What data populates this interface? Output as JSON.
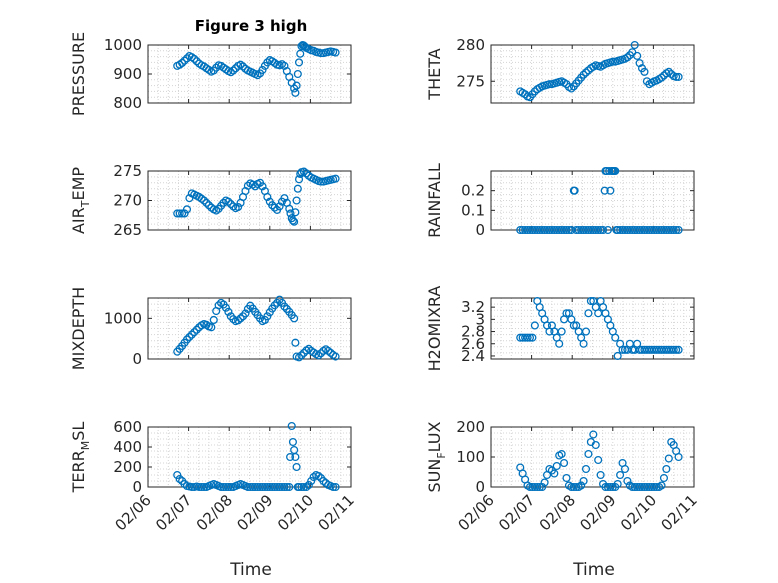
{
  "figure": {
    "title": "Figure 3 high"
  },
  "axes_labels": {
    "xlabel": "Time"
  },
  "colors": {
    "series": "#0072bd",
    "axes": "#262626",
    "grid": "#d4d4d4"
  },
  "chart_data": [
    {
      "type": "scatter",
      "ylabel": "PRESSURE",
      "title": "Figure 3 high",
      "xlim": [
        "02/06",
        "02/11"
      ],
      "ylim": [
        800,
        1000
      ],
      "yticks": [
        800,
        900,
        1000
      ],
      "ytick_labels": [
        "800",
        "900",
        "1000"
      ],
      "xticks": [
        "02/06",
        "02/07",
        "02/08",
        "02/09",
        "02/10",
        "02/11"
      ],
      "show_xticklabels": false,
      "grid": true,
      "x": [
        0.72,
        0.78,
        0.84,
        0.9,
        0.96,
        1.02,
        1.08,
        1.14,
        1.2,
        1.26,
        1.32,
        1.38,
        1.44,
        1.5,
        1.56,
        1.62,
        1.68,
        1.74,
        1.8,
        1.86,
        1.92,
        1.98,
        2.04,
        2.1,
        2.16,
        2.22,
        2.28,
        2.34,
        2.4,
        2.46,
        2.52,
        2.58,
        2.64,
        2.7,
        2.76,
        2.82,
        2.88,
        2.94,
        3.0,
        3.06,
        3.12,
        3.18,
        3.24,
        3.3,
        3.36,
        3.42,
        3.48,
        3.54,
        3.6,
        3.63,
        3.66,
        3.69,
        3.72,
        3.75,
        3.78,
        3.81,
        3.84,
        3.87,
        3.9,
        3.96,
        4.02,
        4.08,
        4.14,
        4.2,
        4.26,
        4.32,
        4.38,
        4.44,
        4.5,
        4.56,
        4.62
      ],
      "y": [
        928,
        932,
        938,
        946,
        954,
        962,
        958,
        952,
        944,
        936,
        930,
        926,
        920,
        914,
        908,
        912,
        922,
        930,
        928,
        922,
        916,
        910,
        906,
        912,
        920,
        928,
        932,
        926,
        918,
        912,
        908,
        904,
        900,
        896,
        902,
        914,
        928,
        940,
        948,
        944,
        938,
        932,
        930,
        934,
        928,
        910,
        890,
        870,
        850,
        835,
        860,
        900,
        940,
        970,
        996,
        1000,
        998,
        994,
        990,
        986,
        982,
        980,
        976,
        974,
        972,
        972,
        974,
        976,
        978,
        976,
        974
      ]
    },
    {
      "type": "scatter",
      "ylabel": "THETA",
      "xlim": [
        "02/06",
        "02/11"
      ],
      "ylim": [
        272,
        280
      ],
      "yticks": [
        275,
        280
      ],
      "ytick_labels": [
        "275",
        "280"
      ],
      "xticks": [
        "02/06",
        "02/07",
        "02/08",
        "02/09",
        "02/10",
        "02/11"
      ],
      "show_xticklabels": false,
      "grid": true,
      "x": [
        0.72,
        0.78,
        0.84,
        0.9,
        0.96,
        1.02,
        1.08,
        1.14,
        1.2,
        1.26,
        1.32,
        1.38,
        1.44,
        1.5,
        1.56,
        1.62,
        1.68,
        1.74,
        1.8,
        1.86,
        1.92,
        1.98,
        2.04,
        2.1,
        2.16,
        2.22,
        2.28,
        2.34,
        2.4,
        2.46,
        2.52,
        2.58,
        2.64,
        2.7,
        2.76,
        2.82,
        2.88,
        2.94,
        3.0,
        3.06,
        3.12,
        3.18,
        3.24,
        3.3,
        3.36,
        3.42,
        3.48,
        3.54,
        3.6,
        3.66,
        3.72,
        3.78,
        3.84,
        3.9,
        3.96,
        4.02,
        4.08,
        4.14,
        4.2,
        4.26,
        4.32,
        4.38,
        4.44,
        4.5,
        4.56,
        4.62
      ],
      "y": [
        273.6,
        273.4,
        273.2,
        272.9,
        272.8,
        273.2,
        273.6,
        273.9,
        274.1,
        274.3,
        274.4,
        274.5,
        274.6,
        274.6,
        274.7,
        274.8,
        274.9,
        275.0,
        274.8,
        274.6,
        274.2,
        274.0,
        274.3,
        274.7,
        275.1,
        275.5,
        275.9,
        276.2,
        276.5,
        276.8,
        277.0,
        277.2,
        277.1,
        277.0,
        277.2,
        277.4,
        277.5,
        277.6,
        277.7,
        277.7,
        277.8,
        277.9,
        278.0,
        278.1,
        278.3,
        278.6,
        279.0,
        280.0,
        278.5,
        277.5,
        276.8,
        276.3,
        275.0,
        274.6,
        274.8,
        275.0,
        275.1,
        275.3,
        275.5,
        275.8,
        276.1,
        276.3,
        276.0,
        275.7,
        275.6,
        275.6
      ]
    },
    {
      "type": "scatter",
      "ylabel": "AIR_TEMP",
      "xlim": [
        "02/06",
        "02/11"
      ],
      "ylim": [
        265,
        275
      ],
      "yticks": [
        265,
        270,
        275
      ],
      "ytick_labels": [
        "265",
        "270",
        "275"
      ],
      "xticks": [
        "02/06",
        "02/07",
        "02/08",
        "02/09",
        "02/10",
        "02/11"
      ],
      "show_xticklabels": false,
      "grid": true,
      "x": [
        0.72,
        0.78,
        0.84,
        0.9,
        0.96,
        1.02,
        1.08,
        1.14,
        1.2,
        1.26,
        1.32,
        1.38,
        1.44,
        1.5,
        1.56,
        1.62,
        1.68,
        1.74,
        1.8,
        1.86,
        1.92,
        1.98,
        2.04,
        2.1,
        2.16,
        2.22,
        2.28,
        2.34,
        2.4,
        2.46,
        2.52,
        2.58,
        2.64,
        2.7,
        2.76,
        2.82,
        2.88,
        2.94,
        3.0,
        3.06,
        3.12,
        3.18,
        3.24,
        3.3,
        3.36,
        3.42,
        3.48,
        3.51,
        3.54,
        3.57,
        3.6,
        3.63,
        3.66,
        3.69,
        3.72,
        3.75,
        3.78,
        3.84,
        3.9,
        3.96,
        4.02,
        4.08,
        4.14,
        4.2,
        4.26,
        4.32,
        4.38,
        4.44,
        4.5,
        4.56,
        4.62
      ],
      "y": [
        267.8,
        267.8,
        267.8,
        267.8,
        268.5,
        270.4,
        271.2,
        271.0,
        270.8,
        270.6,
        270.3,
        270.0,
        269.6,
        269.2,
        268.8,
        268.5,
        268.3,
        268.6,
        269.1,
        269.6,
        270.0,
        269.8,
        269.4,
        269.0,
        268.7,
        268.9,
        269.6,
        270.6,
        271.6,
        272.5,
        272.9,
        272.7,
        272.4,
        272.8,
        273.0,
        272.4,
        271.6,
        270.6,
        269.8,
        269.2,
        268.8,
        268.4,
        269.0,
        269.8,
        270.4,
        269.6,
        268.6,
        267.8,
        267.0,
        266.6,
        266.4,
        268.0,
        270.0,
        272.0,
        273.6,
        274.5,
        274.8,
        274.9,
        274.6,
        274.2,
        273.9,
        273.7,
        273.5,
        273.3,
        273.2,
        273.2,
        273.3,
        273.4,
        273.5,
        273.6,
        273.7
      ]
    },
    {
      "type": "scatter",
      "ylabel": "RAINFALL",
      "xlim": [
        "02/06",
        "02/11"
      ],
      "ylim": [
        0,
        0.3
      ],
      "yticks": [
        0,
        0.1,
        0.2
      ],
      "ytick_labels": [
        "0",
        "0.1",
        "0.2"
      ],
      "xticks": [
        "02/06",
        "02/07",
        "02/08",
        "02/09",
        "02/10",
        "02/11"
      ],
      "show_xticklabels": false,
      "grid": true,
      "x": [
        0.72,
        0.78,
        0.84,
        0.9,
        0.96,
        1.02,
        1.08,
        1.14,
        1.2,
        1.26,
        1.32,
        1.38,
        1.44,
        1.5,
        1.56,
        1.62,
        1.68,
        1.74,
        1.8,
        1.86,
        1.92,
        1.98,
        2.04,
        2.06,
        2.1,
        2.16,
        2.22,
        2.28,
        2.34,
        2.4,
        2.46,
        2.52,
        2.58,
        2.64,
        2.7,
        2.76,
        2.8,
        2.82,
        2.85,
        2.88,
        2.91,
        2.94,
        2.97,
        3.0,
        3.03,
        3.06,
        3.09,
        3.12,
        3.18,
        3.24,
        3.3,
        3.36,
        3.42,
        3.48,
        3.54,
        3.6,
        3.66,
        3.72,
        3.78,
        3.84,
        3.9,
        3.96,
        4.02,
        4.08,
        4.14,
        4.2,
        4.26,
        4.32,
        4.38,
        4.44,
        4.5,
        4.56,
        4.62
      ],
      "y": [
        0,
        0,
        0,
        0,
        0,
        0,
        0,
        0,
        0,
        0,
        0,
        0,
        0,
        0,
        0,
        0,
        0,
        0,
        0,
        0,
        0,
        0,
        0.2,
        0.2,
        0,
        0,
        0,
        0,
        0,
        0,
        0,
        0,
        0,
        0,
        0,
        0,
        0.2,
        0.3,
        0.3,
        0,
        0.3,
        0.2,
        0.3,
        0.3,
        0.3,
        0.3,
        0,
        0,
        0,
        0,
        0,
        0,
        0,
        0,
        0,
        0,
        0,
        0,
        0,
        0,
        0,
        0,
        0,
        0,
        0,
        0,
        0,
        0,
        0,
        0,
        0,
        0,
        0
      ]
    },
    {
      "type": "scatter",
      "ylabel": "MIXDEPTH",
      "xlim": [
        "02/06",
        "02/11"
      ],
      "ylim": [
        0,
        1500
      ],
      "yticks": [
        0,
        1000
      ],
      "ytick_labels": [
        "0",
        "1000"
      ],
      "xticks": [
        "02/06",
        "02/07",
        "02/08",
        "02/09",
        "02/10",
        "02/11"
      ],
      "show_xticklabels": false,
      "grid": true,
      "x": [
        0.72,
        0.78,
        0.84,
        0.9,
        0.96,
        1.02,
        1.08,
        1.14,
        1.2,
        1.26,
        1.32,
        1.38,
        1.44,
        1.5,
        1.56,
        1.62,
        1.68,
        1.74,
        1.8,
        1.86,
        1.92,
        1.98,
        2.04,
        2.1,
        2.16,
        2.22,
        2.28,
        2.34,
        2.4,
        2.46,
        2.52,
        2.58,
        2.64,
        2.7,
        2.76,
        2.82,
        2.88,
        2.94,
        3.0,
        3.06,
        3.12,
        3.18,
        3.24,
        3.3,
        3.36,
        3.42,
        3.48,
        3.54,
        3.6,
        3.63,
        3.66,
        3.72,
        3.78,
        3.84,
        3.9,
        3.96,
        4.02,
        4.08,
        4.14,
        4.2,
        4.26,
        4.32,
        4.38,
        4.44,
        4.5,
        4.56,
        4.62
      ],
      "y": [
        180,
        250,
        320,
        400,
        480,
        540,
        600,
        660,
        720,
        780,
        830,
        860,
        840,
        800,
        780,
        960,
        1180,
        1320,
        1380,
        1340,
        1260,
        1160,
        1050,
        980,
        930,
        950,
        1000,
        1050,
        1120,
        1230,
        1310,
        1240,
        1160,
        1080,
        1000,
        930,
        960,
        1050,
        1150,
        1240,
        1320,
        1380,
        1460,
        1380,
        1290,
        1230,
        1160,
        1080,
        1000,
        400,
        60,
        40,
        90,
        150,
        210,
        250,
        200,
        160,
        120,
        90,
        140,
        200,
        240,
        200,
        150,
        100,
        60
      ]
    },
    {
      "type": "scatter",
      "ylabel": "H2OMIXRA",
      "xlim": [
        "02/06",
        "02/11"
      ],
      "ylim": [
        2.35,
        3.35
      ],
      "yticks": [
        2.4,
        2.6,
        2.8,
        3.0,
        3.2
      ],
      "ytick_labels": [
        "2.4",
        "2.6",
        "2.8",
        "3",
        "3.2"
      ],
      "xticks": [
        "02/06",
        "02/07",
        "02/08",
        "02/09",
        "02/10",
        "02/11"
      ],
      "show_xticklabels": false,
      "grid": true,
      "x": [
        0.72,
        0.78,
        0.84,
        0.9,
        0.96,
        1.02,
        1.08,
        1.14,
        1.2,
        1.26,
        1.32,
        1.38,
        1.44,
        1.5,
        1.56,
        1.62,
        1.68,
        1.74,
        1.8,
        1.86,
        1.92,
        1.98,
        2.04,
        2.1,
        2.16,
        2.22,
        2.28,
        2.34,
        2.4,
        2.46,
        2.52,
        2.58,
        2.64,
        2.7,
        2.76,
        2.82,
        2.88,
        2.94,
        3.0,
        3.06,
        3.12,
        3.18,
        3.24,
        3.3,
        3.36,
        3.42,
        3.48,
        3.54,
        3.6,
        3.66,
        3.72,
        3.78,
        3.84,
        3.9,
        3.96,
        4.02,
        4.08,
        4.14,
        4.2,
        4.26,
        4.32,
        4.38,
        4.44,
        4.5,
        4.56,
        4.62
      ],
      "y": [
        2.7,
        2.7,
        2.7,
        2.7,
        2.7,
        2.7,
        2.9,
        3.3,
        3.2,
        3.1,
        3.0,
        2.9,
        2.8,
        2.9,
        2.8,
        2.7,
        2.6,
        2.8,
        3.0,
        3.1,
        3.1,
        3.0,
        2.9,
        2.9,
        2.8,
        2.7,
        2.6,
        2.8,
        3.1,
        3.3,
        3.3,
        3.2,
        3.1,
        3.3,
        3.2,
        3.1,
        3.0,
        2.9,
        2.8,
        2.7,
        2.4,
        2.6,
        2.5,
        2.5,
        2.5,
        2.6,
        2.5,
        2.5,
        2.6,
        2.5,
        2.5,
        2.5,
        2.5,
        2.5,
        2.5,
        2.5,
        2.5,
        2.5,
        2.5,
        2.5,
        2.5,
        2.5,
        2.5,
        2.5,
        2.5,
        2.5
      ]
    },
    {
      "type": "scatter",
      "ylabel": "TERR_MSL",
      "xlim": [
        "02/06",
        "02/11"
      ],
      "ylim": [
        0,
        600
      ],
      "yticks": [
        0,
        200,
        400,
        600
      ],
      "ytick_labels": [
        "0",
        "200",
        "400",
        "600"
      ],
      "xticks": [
        "02/06",
        "02/07",
        "02/08",
        "02/09",
        "02/10",
        "02/11"
      ],
      "xtick_labels": [
        "02/06",
        "02/07",
        "02/08",
        "02/09",
        "02/10",
        "02/11"
      ],
      "show_xticklabels": true,
      "grid": true,
      "x": [
        0.72,
        0.78,
        0.84,
        0.9,
        0.96,
        1.02,
        1.08,
        1.14,
        1.2,
        1.26,
        1.32,
        1.38,
        1.44,
        1.5,
        1.56,
        1.62,
        1.68,
        1.74,
        1.8,
        1.86,
        1.92,
        1.98,
        2.04,
        2.1,
        2.16,
        2.22,
        2.28,
        2.34,
        2.4,
        2.46,
        2.52,
        2.58,
        2.64,
        2.7,
        2.76,
        2.82,
        2.88,
        2.94,
        3.0,
        3.06,
        3.12,
        3.18,
        3.24,
        3.3,
        3.36,
        3.42,
        3.48,
        3.5,
        3.54,
        3.57,
        3.6,
        3.63,
        3.66,
        3.69,
        3.72,
        3.78,
        3.84,
        3.9,
        3.96,
        4.02,
        4.08,
        4.14,
        4.2,
        4.26,
        4.32,
        4.38,
        4.44,
        4.5,
        4.56,
        4.62
      ],
      "y": [
        120,
        80,
        60,
        30,
        10,
        5,
        0,
        0,
        5,
        0,
        0,
        0,
        0,
        10,
        20,
        30,
        20,
        10,
        0,
        0,
        0,
        0,
        0,
        0,
        10,
        20,
        30,
        20,
        10,
        0,
        0,
        0,
        0,
        0,
        0,
        0,
        0,
        0,
        0,
        0,
        0,
        0,
        0,
        0,
        0,
        0,
        0,
        300,
        610,
        450,
        370,
        300,
        200,
        0,
        0,
        0,
        0,
        0,
        20,
        60,
        100,
        120,
        110,
        90,
        60,
        40,
        20,
        10,
        0,
        0
      ]
    },
    {
      "type": "scatter",
      "ylabel": "SUN_FLUX",
      "xlim": [
        "02/06",
        "02/11"
      ],
      "ylim": [
        0,
        200
      ],
      "yticks": [
        0,
        100,
        200
      ],
      "ytick_labels": [
        "0",
        "100",
        "200"
      ],
      "xticks": [
        "02/06",
        "02/07",
        "02/08",
        "02/09",
        "02/10",
        "02/11"
      ],
      "xtick_labels": [
        "02/06",
        "02/07",
        "02/08",
        "02/09",
        "02/10",
        "02/11"
      ],
      "show_xticklabels": true,
      "grid": true,
      "x": [
        0.72,
        0.78,
        0.84,
        0.9,
        0.96,
        1.02,
        1.08,
        1.14,
        1.2,
        1.26,
        1.32,
        1.38,
        1.44,
        1.5,
        1.56,
        1.62,
        1.68,
        1.74,
        1.8,
        1.86,
        1.92,
        1.98,
        2.04,
        2.1,
        2.16,
        2.22,
        2.28,
        2.34,
        2.4,
        2.46,
        2.52,
        2.58,
        2.64,
        2.7,
        2.76,
        2.82,
        2.88,
        2.94,
        3.0,
        3.06,
        3.12,
        3.18,
        3.24,
        3.3,
        3.36,
        3.42,
        3.48,
        3.54,
        3.6,
        3.66,
        3.72,
        3.78,
        3.84,
        3.9,
        3.96,
        4.02,
        4.08,
        4.14,
        4.2,
        4.26,
        4.32,
        4.38,
        4.44,
        4.5,
        4.56,
        4.62
      ],
      "y": [
        65,
        45,
        25,
        5,
        0,
        0,
        0,
        0,
        0,
        0,
        15,
        40,
        60,
        55,
        45,
        70,
        105,
        110,
        80,
        30,
        5,
        0,
        0,
        0,
        0,
        5,
        20,
        60,
        110,
        150,
        175,
        140,
        90,
        40,
        10,
        0,
        0,
        0,
        0,
        0,
        10,
        40,
        80,
        60,
        20,
        5,
        0,
        0,
        0,
        0,
        0,
        0,
        0,
        0,
        0,
        0,
        0,
        0,
        5,
        30,
        60,
        95,
        150,
        140,
        120,
        100
      ]
    }
  ]
}
